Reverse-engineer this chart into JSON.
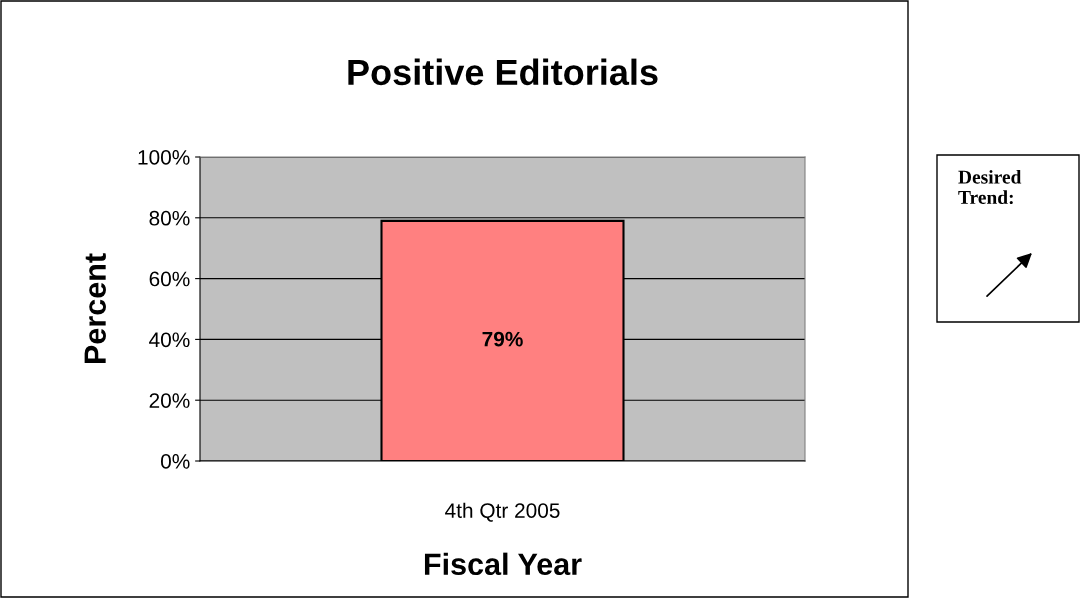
{
  "chart_data": {
    "type": "bar",
    "title": "Positive Editorials",
    "xlabel": "Fiscal Year",
    "ylabel": "Percent",
    "categories": [
      "4th Qtr 2005"
    ],
    "values": [
      79
    ],
    "color": "#ff8080",
    "value_labels": [
      "79%"
    ],
    "ylim": [
      0,
      100
    ],
    "yticks": [
      {
        "value": 0,
        "label": "0%"
      },
      {
        "value": 20,
        "label": "20%"
      },
      {
        "value": 40,
        "label": "40%"
      },
      {
        "value": 60,
        "label": "60%"
      },
      {
        "value": 80,
        "label": "80%"
      },
      {
        "value": 100,
        "label": "100%"
      }
    ],
    "grid": "y",
    "annotations": [
      "Desired Trend:"
    ]
  }
}
